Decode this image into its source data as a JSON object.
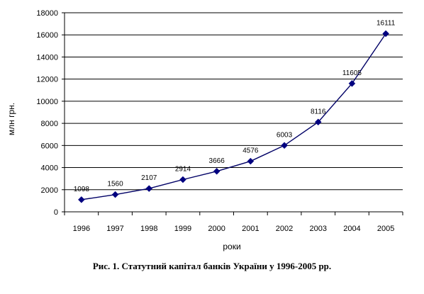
{
  "chart_data": {
    "type": "line",
    "title": "",
    "xlabel": "роки",
    "ylabel": "млн грн.",
    "categories": [
      "1996",
      "1997",
      "1998",
      "1999",
      "2000",
      "2001",
      "2002",
      "2003",
      "2004",
      "2005"
    ],
    "series": [
      {
        "values": [
          1098,
          1560,
          2107,
          2914,
          3666,
          4576,
          6003,
          8116,
          11605,
          16111
        ],
        "labels": [
          "1098",
          "1560",
          "2107",
          "2914",
          "3666",
          "4576",
          "6003",
          "8116",
          "11605",
          "16111"
        ]
      }
    ],
    "ylim": [
      0,
      18000
    ],
    "yticks": [
      "0",
      "2000",
      "4000",
      "6000",
      "8000",
      "10000",
      "12000",
      "14000",
      "16000",
      "18000"
    ],
    "grid": "horizontal",
    "legend": "none",
    "colors": {
      "line": "#000066",
      "marker": "#000080",
      "grid": "#000000",
      "axis": "#000000"
    },
    "marker": "diamond"
  },
  "caption": "Рис. 1. Статутний капітал банків України у 1996-2005 рр."
}
